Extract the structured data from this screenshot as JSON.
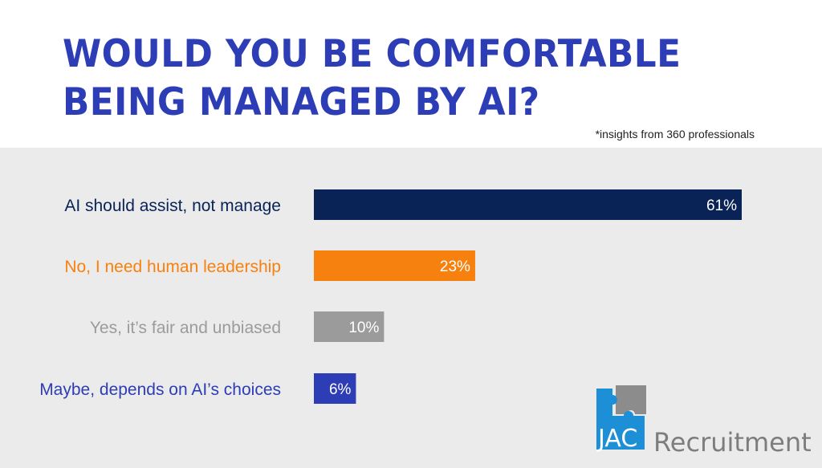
{
  "header": {
    "title": "WOULD YOU BE COMFORTABLE BEING MANAGED BY AI?",
    "subtitle": "*insights from 360 professionals"
  },
  "chart_data": {
    "type": "bar",
    "orientation": "horizontal",
    "categories": [
      "AI should assist, not manage",
      "No, I need human leadership",
      "Yes, it’s fair and unbiased",
      "Maybe, depends on AI’s choices"
    ],
    "values": [
      61,
      23,
      10,
      6
    ],
    "value_labels": [
      "61%",
      "23%",
      "10%",
      "6%"
    ],
    "colors": [
      "#0a2357",
      "#f7810f",
      "#9b9b9b",
      "#2d3db5"
    ],
    "label_colors": [
      "#0a2357",
      "#f7810f",
      "#9b9b9b",
      "#2d3db5"
    ],
    "xlim": [
      0,
      61
    ],
    "grid": false
  },
  "logo": {
    "text_letters": "JAC",
    "text_word": "Recruitment",
    "colors": {
      "blue": "#1c8fd6",
      "grey": "#7d7d7d"
    }
  }
}
